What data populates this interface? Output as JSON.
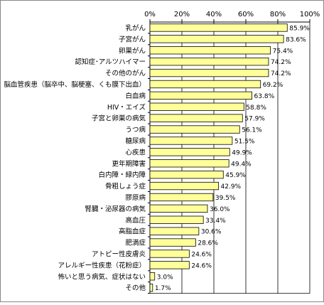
{
  "colors": {
    "bar_fill": "#FFFF99",
    "bar_stroke": "#000000",
    "gridline": "#000000",
    "frame": "#888888"
  },
  "chart_data": {
    "type": "bar",
    "orientation": "horizontal",
    "title": "",
    "xlabel": "",
    "ylabel": "",
    "xlim": [
      0,
      100
    ],
    "x_ticks": [
      "0%",
      "20%",
      "40%",
      "60%",
      "80%",
      "100%"
    ],
    "grid": true,
    "legend": "none",
    "categories": [
      "乳がん",
      "子宮がん",
      "卵巣がん",
      "認知症･アルツハイマー",
      "その他のがん",
      "脳血管疾患（脳卒中、脳梗塞、くも膜下出血）",
      "白血病",
      "HIV・エイズ",
      "子宮と卵巣の病気",
      "うつ病",
      "糖尿病",
      "心疾患",
      "更年期障害",
      "白内障・緑内障",
      "骨粗しょう症",
      "膠原病",
      "腎臓・泌尿器の病気",
      "高血圧",
      "高脂血症",
      "肥満症",
      "アトピー性皮膚炎",
      "アレルギー性疾患（花粉症）",
      "怖いと思う病気、症状はない",
      "その他"
    ],
    "values": [
      85.9,
      83.6,
      75.4,
      74.2,
      74.2,
      69.2,
      63.8,
      58.8,
      57.9,
      56.1,
      51.5,
      49.9,
      49.4,
      45.9,
      42.9,
      39.5,
      36.0,
      33.4,
      30.6,
      28.6,
      24.6,
      24.6,
      3.0,
      1.7
    ],
    "value_labels": [
      "85.9%",
      "83.6%",
      "75.4%",
      "74.2%",
      "74.2%",
      "69.2%",
      "63.8%",
      "58.8%",
      "57.9%",
      "56.1%",
      "51.5%",
      "49.9%",
      "49.4%",
      "45.9%",
      "42.9%",
      "39.5%",
      "36.0%",
      "33.4%",
      "30.6%",
      "28.6%",
      "24.6%",
      "24.6%",
      "3.0%",
      "1.7%"
    ]
  }
}
